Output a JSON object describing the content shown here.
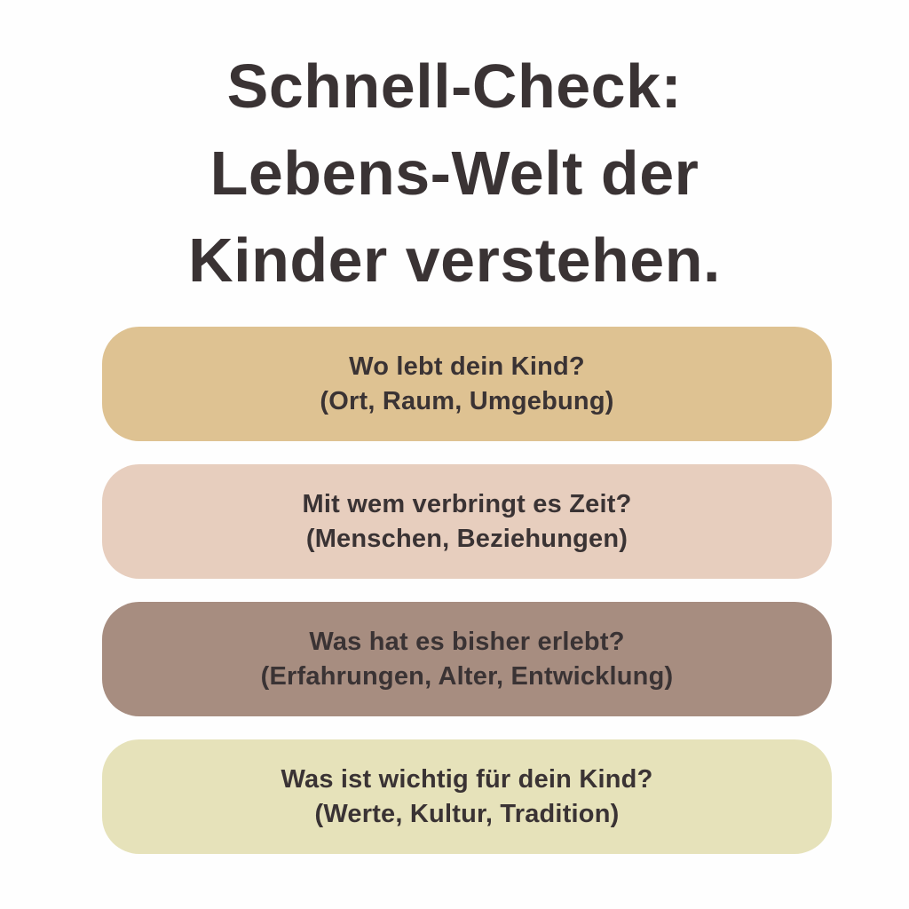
{
  "page": {
    "background": "#fefefe",
    "text_color": "#3a3334"
  },
  "title": {
    "lines": [
      "Schnell-Check:",
      "Lebens-Welt der",
      "Kinder verstehen."
    ]
  },
  "cards": [
    {
      "question": "Wo lebt dein Kind?",
      "detail": "(Ort, Raum, Umgebung)",
      "color": "#dec292"
    },
    {
      "question": "Mit wem verbringt es Zeit?",
      "detail": "(Menschen, Beziehungen)",
      "color": "#e7cebe"
    },
    {
      "question": "Was hat es bisher erlebt?",
      "detail": "(Erfahrungen, Alter, Entwicklung)",
      "color": "#a78d80"
    },
    {
      "question": "Was ist wichtig für dein Kind?",
      "detail": "(Werte, Kultur, Tradition)",
      "color": "#e6e2ba"
    }
  ]
}
